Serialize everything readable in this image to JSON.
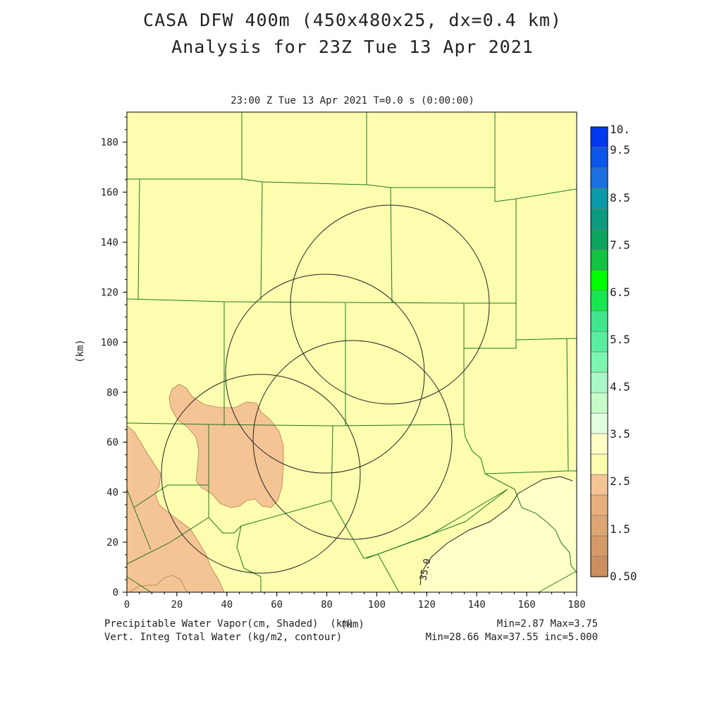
{
  "header": {
    "title_line1": "CASA DFW 400m (450x480x25, dx=0.4 km)",
    "title_line2": "Analysis for 23Z Tue 13 Apr 2021",
    "plot_time": "23:00 Z Tue 13 Apr 2021   T=0.0 s (0:00:00)"
  },
  "map": {
    "x_axis": {
      "label": "(km)",
      "range": [
        0,
        180
      ],
      "ticks": [
        "0",
        "20",
        "40",
        "60",
        "80",
        "100",
        "120",
        "140",
        "160",
        "180"
      ]
    },
    "y_axis": {
      "label": "(km)",
      "range": [
        0,
        192
      ],
      "ticks": [
        "0",
        "20",
        "40",
        "60",
        "80",
        "100",
        "120",
        "140",
        "160",
        "180"
      ]
    },
    "background_color": "#fdfdb0",
    "county_line_color": "#1f7a1f",
    "contour_label": "35.0"
  },
  "colorbar": {
    "labels": [
      "10.",
      "9.5",
      "8.5",
      "7.5",
      "6.5",
      "5.5",
      "4.5",
      "3.5",
      "2.5",
      "1.5",
      "0.50"
    ],
    "colors": [
      "#cc9060",
      "#d49a68",
      "#dca672",
      "#e6b07e",
      "#f5c495",
      "#fdfdb0",
      "#ffffc8",
      "#e2fde0",
      "#c6fcc8",
      "#a8f8c8",
      "#7cf5b0",
      "#58eea0",
      "#40e68c",
      "#18e650",
      "#00ff00",
      "#12c242",
      "#0da460",
      "#0b9a80",
      "#0a9aa8",
      "#1a70e0",
      "#0a56e8",
      "#0038f0"
    ]
  },
  "footer": {
    "left_line1": "Precipitable Water Vapor(cm, Shaded)  (km)",
    "left_line2": "Vert. Integ Total Water (kg/m2, contour)",
    "right_line1": "Min=2.87 Max=3.75",
    "right_line2": "Min=28.66 Max=37.55 inc=5.000"
  }
}
